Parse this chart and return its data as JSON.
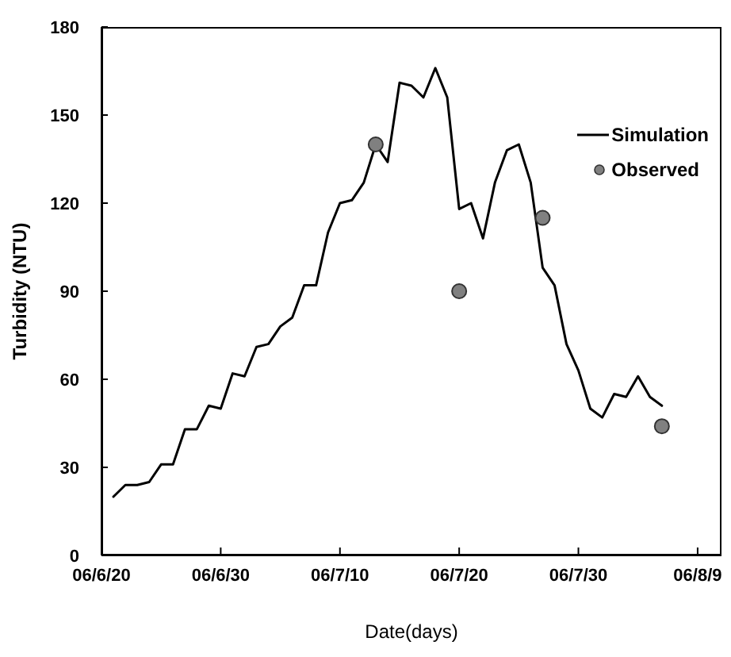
{
  "chart_data": {
    "type": "line",
    "xlabel": "Date(days)",
    "ylabel": "Turbidity (NTU)",
    "xlim": [
      "--06-20",
      "--08-11"
    ],
    "xticks": [
      {
        "value": "--06-20",
        "label": "06/6/20"
      },
      {
        "value": "--06-30",
        "label": "06/6/30"
      },
      {
        "value": "--07-10",
        "label": "06/7/10"
      },
      {
        "value": "--07-20",
        "label": "06/7/20"
      },
      {
        "value": "--07-30",
        "label": "06/7/30"
      },
      {
        "value": "--08-09",
        "label": "06/8/9"
      }
    ],
    "ylim": [
      0,
      180
    ],
    "yticks": [
      0,
      30,
      60,
      90,
      120,
      150,
      180
    ],
    "legend": "top right",
    "line_style": "solid",
    "series": [
      {
        "name": "Simulation",
        "color": "#000000",
        "x": [
          "--06-21",
          "--06-22",
          "--06-23",
          "--06-24",
          "--06-25",
          "--06-26",
          "--06-27",
          "--06-28",
          "--06-29",
          "--06-30",
          "--07-01",
          "--07-02",
          "--07-03",
          "--07-04",
          "--07-05",
          "--07-06",
          "--07-07",
          "--07-08",
          "--07-09",
          "--07-10",
          "--07-11",
          "--07-12",
          "--07-13",
          "--07-14",
          "--07-15",
          "--07-16",
          "--07-17",
          "--07-18",
          "--07-19",
          "--07-20",
          "--07-21",
          "--07-22",
          "--07-23",
          "--07-24",
          "--07-25",
          "--07-26",
          "--07-27",
          "--07-28",
          "--07-29",
          "--07-30",
          "--07-31",
          "--08-01",
          "--08-02",
          "--08-03",
          "--08-04",
          "--08-05",
          "--08-06"
        ],
        "values": [
          20,
          24,
          24,
          25,
          31,
          31,
          43,
          43,
          51,
          50,
          62,
          61,
          71,
          72,
          78,
          81,
          92,
          92,
          110,
          120,
          121,
          127,
          140,
          134,
          161,
          160,
          156,
          166,
          156,
          118,
          120,
          108,
          127,
          138,
          140,
          127,
          98,
          92,
          72,
          63,
          50,
          47,
          55,
          54,
          61,
          54,
          51
        ]
      },
      {
        "name": "Observed",
        "type": "scatter",
        "color": "#808080",
        "marker": "circle",
        "x": [
          "--07-13",
          "--07-20",
          "--07-27",
          "--08-06"
        ],
        "values": [
          140,
          90,
          115,
          44
        ]
      }
    ]
  }
}
